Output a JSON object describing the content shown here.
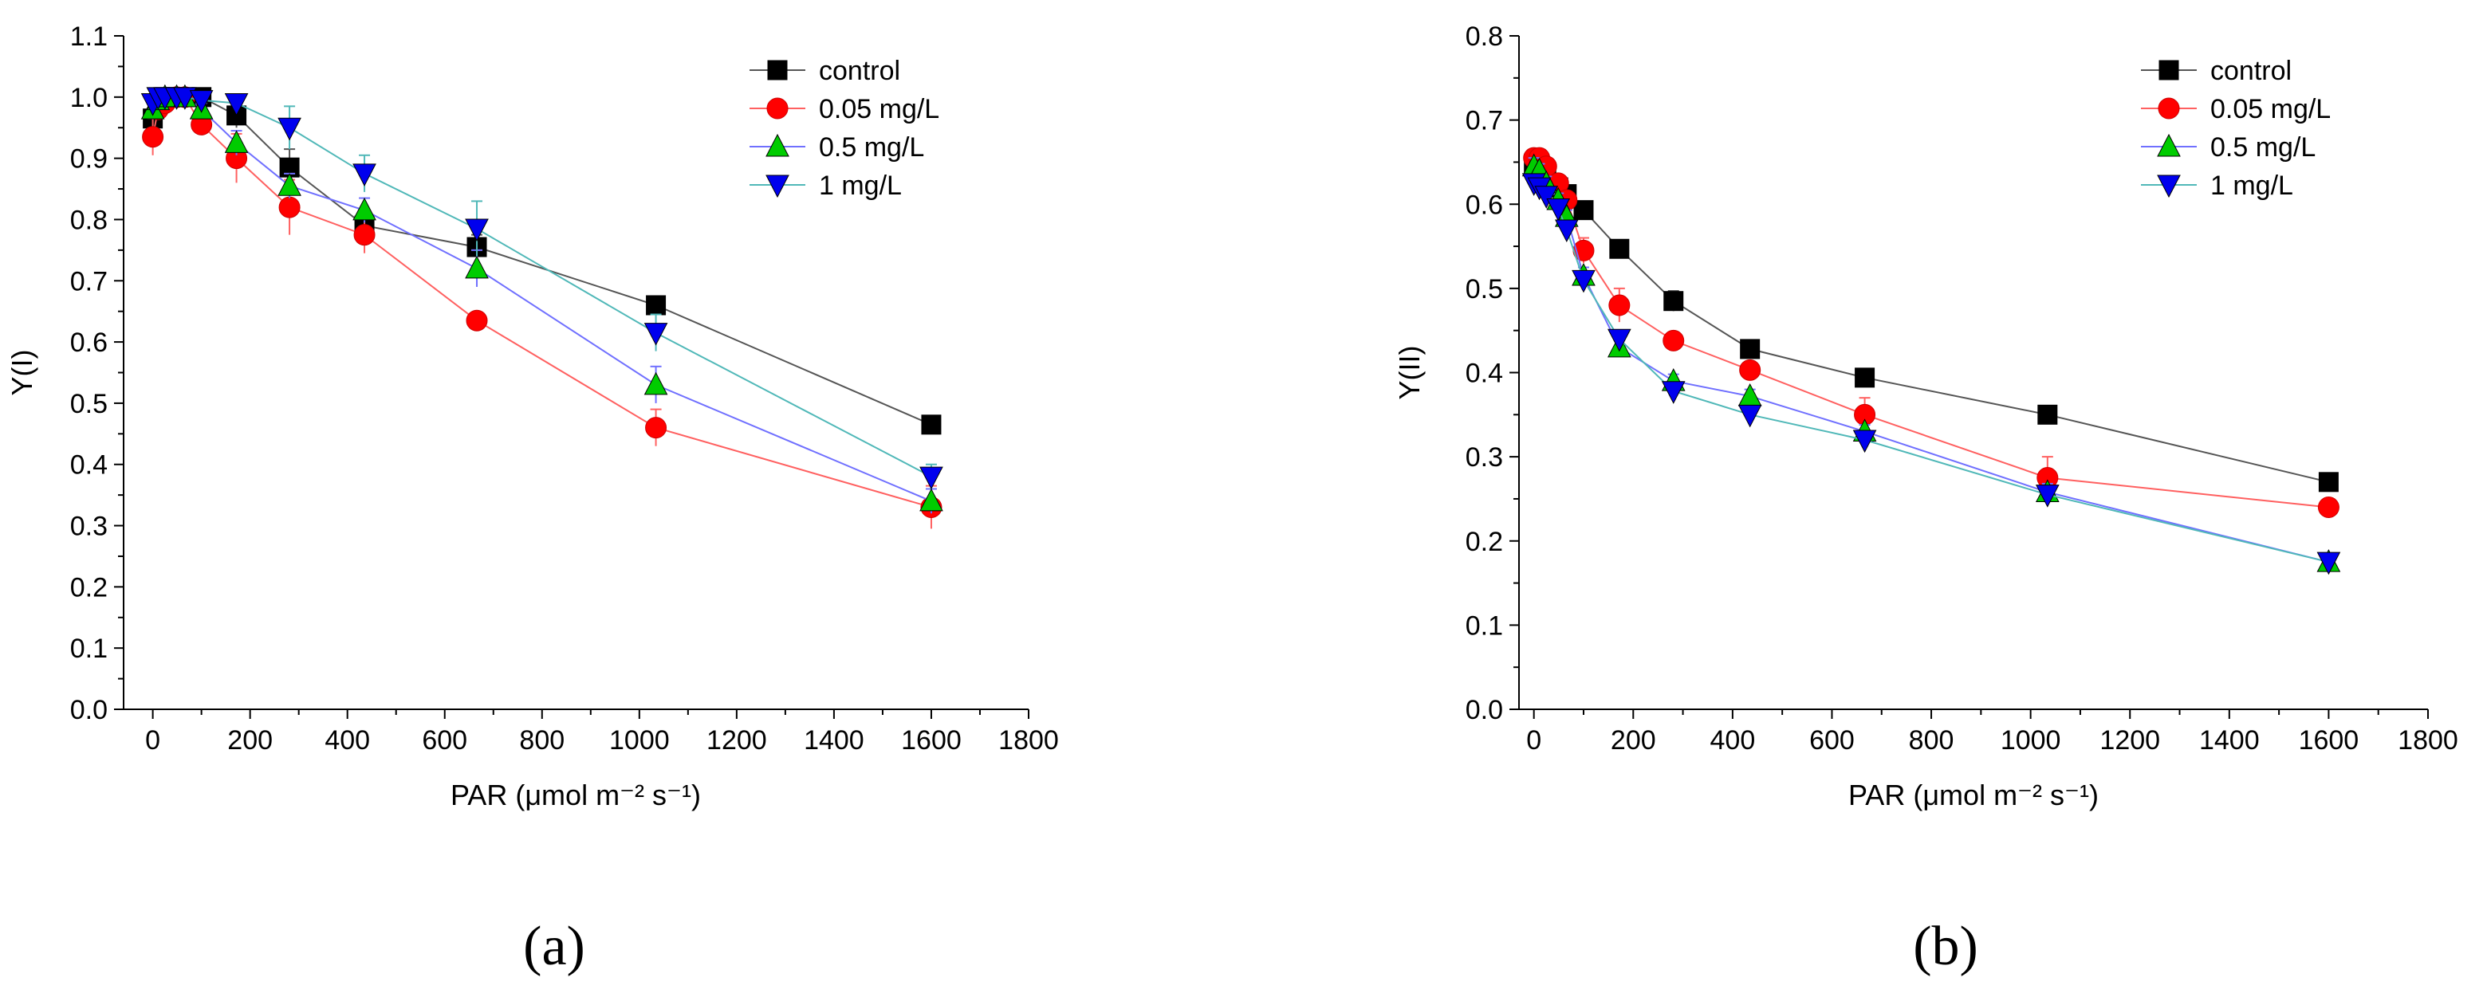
{
  "chart_data": [
    {
      "type": "line",
      "panel_label": "(a)",
      "ylabel": "Y(I)",
      "xlabel": "PAR",
      "xlabel_unit": "(μmol m⁻² s⁻¹)",
      "xlim": [
        -60,
        1800
      ],
      "ylim": [
        0,
        1.1
      ],
      "xticks": [
        "0",
        "200",
        "400",
        "600",
        "800",
        "1000",
        "1200",
        "1400",
        "1600",
        "1800"
      ],
      "yticks": [
        "0.0",
        "0.1",
        "0.2",
        "0.3",
        "0.4",
        "0.5",
        "0.6",
        "0.7",
        "0.8",
        "0.9",
        "1.0",
        "1.1"
      ],
      "legend_position": "top-right",
      "x": [
        0,
        11,
        25,
        49,
        66,
        100,
        172,
        281,
        435,
        666,
        1034,
        1600
      ],
      "series": [
        {
          "name": "control",
          "marker": "square",
          "color": "#000000",
          "line_color": "#555555",
          "values": [
            0.965,
            0.99,
            1.0,
            1.0,
            1.0,
            1.0,
            0.97,
            0.885,
            0.79,
            0.755,
            0.66,
            0.465
          ],
          "errors": [
            0.01,
            0.01,
            0.005,
            0.005,
            0.005,
            0.005,
            0.02,
            0.03,
            0.02,
            0.02,
            0.015,
            0.01
          ]
        },
        {
          "name": "0.05 mg/L",
          "marker": "circle",
          "color": "#ff0000",
          "line_color": "#ff6060",
          "values": [
            0.935,
            0.98,
            0.99,
            1.0,
            1.0,
            0.955,
            0.9,
            0.82,
            0.775,
            0.635,
            0.46,
            0.33
          ],
          "errors": [
            0.03,
            0.015,
            0.01,
            0.005,
            0.005,
            0.015,
            0.04,
            0.045,
            0.03,
            0.01,
            0.03,
            0.035
          ]
        },
        {
          "name": "0.5 mg/L",
          "marker": "triangle-up",
          "color": "#00cc00",
          "line_color": "#7070ff",
          "values": [
            0.98,
            0.995,
            1.0,
            1.0,
            1.0,
            0.98,
            0.925,
            0.855,
            0.815,
            0.72,
            0.53,
            0.34
          ],
          "errors": [
            0.01,
            0.01,
            0.005,
            0.005,
            0.005,
            0.01,
            0.02,
            0.02,
            0.02,
            0.03,
            0.03,
            0.02
          ]
        },
        {
          "name": "1 mg/L",
          "marker": "triangle-down",
          "color": "#0000ee",
          "line_color": "#50b8b8",
          "values": [
            0.99,
            1.0,
            1.0,
            1.0,
            1.0,
            0.995,
            0.99,
            0.95,
            0.875,
            0.785,
            0.615,
            0.38
          ],
          "errors": [
            0.01,
            0.005,
            0.005,
            0.005,
            0.005,
            0.005,
            0.01,
            0.035,
            0.03,
            0.045,
            0.03,
            0.02
          ]
        }
      ]
    },
    {
      "type": "line",
      "panel_label": "(b)",
      "ylabel": "Y(II)",
      "xlabel": "PAR",
      "xlabel_unit": "(μmol m⁻² s⁻¹)",
      "xlim": [
        -30,
        1800
      ],
      "ylim": [
        0,
        0.8
      ],
      "xticks": [
        "0",
        "200",
        "400",
        "600",
        "800",
        "1000",
        "1200",
        "1400",
        "1600",
        "1800"
      ],
      "yticks": [
        "0.0",
        "0.1",
        "0.2",
        "0.3",
        "0.4",
        "0.5",
        "0.6",
        "0.7",
        "0.8"
      ],
      "legend_position": "top-right",
      "x": [
        0,
        11,
        25,
        49,
        66,
        100,
        172,
        281,
        435,
        666,
        1034,
        1600
      ],
      "series": [
        {
          "name": "control",
          "marker": "square",
          "color": "#000000",
          "line_color": "#555555",
          "values": [
            0.645,
            0.64,
            0.63,
            0.62,
            0.612,
            0.593,
            0.547,
            0.485,
            0.428,
            0.394,
            0.35,
            0.27
          ],
          "errors": [
            0.01,
            0.008,
            0.008,
            0.008,
            0.008,
            0.008,
            0.01,
            0.012,
            0.01,
            0.008,
            0.006,
            0.006
          ]
        },
        {
          "name": "0.05 mg/L",
          "marker": "circle",
          "color": "#ff0000",
          "line_color": "#ff6060",
          "values": [
            0.655,
            0.655,
            0.645,
            0.625,
            0.605,
            0.545,
            0.48,
            0.438,
            0.403,
            0.35,
            0.275,
            0.24
          ],
          "errors": [
            0.01,
            0.008,
            0.008,
            0.008,
            0.008,
            0.015,
            0.02,
            0.01,
            0.01,
            0.02,
            0.025,
            0.008
          ]
        },
        {
          "name": "0.5 mg/L",
          "marker": "triangle-up",
          "color": "#00cc00",
          "line_color": "#7070ff",
          "values": [
            0.645,
            0.64,
            0.625,
            0.605,
            0.585,
            0.515,
            0.43,
            0.39,
            0.372,
            0.33,
            0.258,
            0.175
          ],
          "errors": [
            0.01,
            0.008,
            0.008,
            0.008,
            0.008,
            0.01,
            0.01,
            0.008,
            0.008,
            0.008,
            0.01,
            0.008
          ]
        },
        {
          "name": "1 mg/L",
          "marker": "triangle-down",
          "color": "#0000ee",
          "line_color": "#50b8b8",
          "values": [
            0.625,
            0.62,
            0.61,
            0.595,
            0.57,
            0.51,
            0.44,
            0.378,
            0.35,
            0.32,
            0.255,
            0.175
          ],
          "errors": [
            0.01,
            0.008,
            0.008,
            0.008,
            0.008,
            0.01,
            0.01,
            0.008,
            0.008,
            0.008,
            0.01,
            0.008
          ]
        }
      ]
    }
  ]
}
